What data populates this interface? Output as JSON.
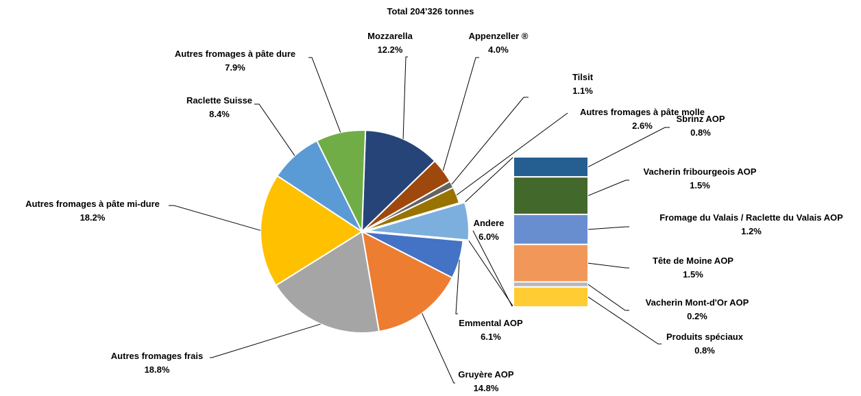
{
  "chart_data": {
    "type": "pie",
    "subtype": "bar-of-pie",
    "title": "Total 204’326 tonnes",
    "slices": [
      {
        "name": "Mozzarella",
        "label": "12.2%",
        "value": 12.2,
        "color": "#264478"
      },
      {
        "name": "Appenzeller ®",
        "label": "4.0%",
        "value": 4.0,
        "color": "#9E480E"
      },
      {
        "name": "Tilsit",
        "label": "1.1%",
        "value": 1.1,
        "color": "#636363"
      },
      {
        "name": "Autres fromages à pâte molle",
        "label": "2.6%",
        "value": 2.6,
        "color": "#997300"
      },
      {
        "name": "Andere",
        "label": "6.0%",
        "value": 6.0,
        "color": "#7CAFDD"
      },
      {
        "name": "Emmental AOP",
        "label": "6.1%",
        "value": 6.1,
        "color": "#4472C4"
      },
      {
        "name": "Gruyère AOP",
        "label": "14.8%",
        "value": 14.8,
        "color": "#ED7D31"
      },
      {
        "name": "Autres fromages frais",
        "label": "18.8%",
        "value": 18.8,
        "color": "#A5A5A5"
      },
      {
        "name": "Autres fromages à pâte mi-dure",
        "label": "18.2%",
        "value": 18.2,
        "color": "#FFC000"
      },
      {
        "name": "Raclette Suisse",
        "label": "8.4%",
        "value": 8.4,
        "color": "#5B9BD5"
      },
      {
        "name": "Autres fromages à pâte dure",
        "label": "7.9%",
        "value": 7.9,
        "color": "#70AD47"
      }
    ],
    "breakdown_of": "Andere",
    "breakdown": [
      {
        "name": "Sbrinz AOP",
        "label": "0.8%",
        "value": 0.8,
        "color": "#255E91"
      },
      {
        "name": "Vacherin fribourgeois AOP",
        "label": "1.5%",
        "value": 1.5,
        "color": "#43682B"
      },
      {
        "name": "Fromage du Valais / Raclette du Valais AOP",
        "label": "1.2%",
        "value": 1.2,
        "color": "#698ED0"
      },
      {
        "name": "Tête de Moine AOP",
        "label": "1.5%",
        "value": 1.5,
        "color": "#F1975A"
      },
      {
        "name": "Vacherin Mont-d'Or AOP",
        "label": "0.2%",
        "value": 0.2,
        "color": "#B7B7B7"
      },
      {
        "name": "Produits spéciaux",
        "label": "0.8%",
        "value": 0.8,
        "color": "#FFCD33"
      }
    ]
  }
}
